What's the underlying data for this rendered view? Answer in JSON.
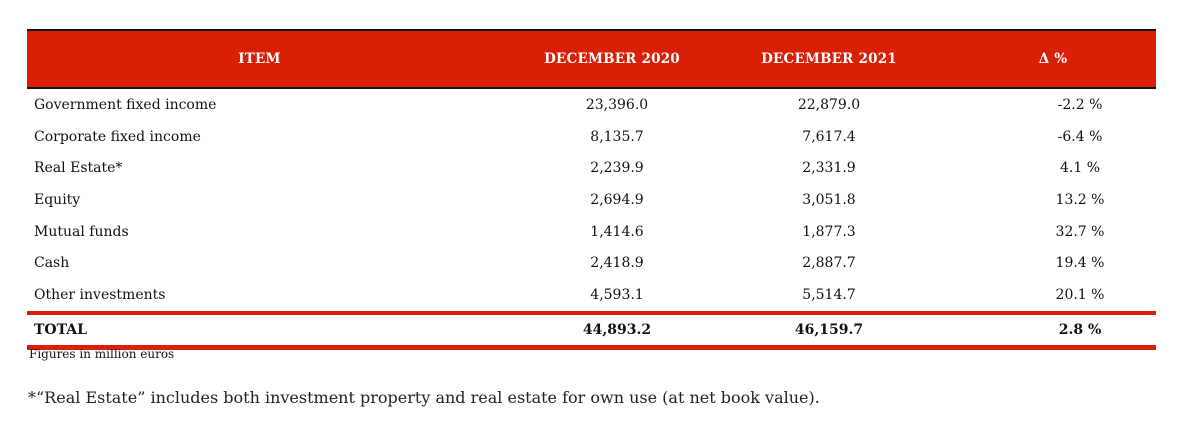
{
  "table": {
    "headers": [
      "ITEM",
      "DECEMBER 2020",
      "DECEMBER 2021",
      "Δ %"
    ],
    "rows": [
      [
        "Government fixed income",
        "23,396.0",
        "22,879.0",
        "-2.2 %"
      ],
      [
        "Corporate fixed income",
        "8,135.7",
        "7,617.4",
        "-6.4 %"
      ],
      [
        "Real Estate*",
        "2,239.9",
        "2,331.9",
        "4.1 %"
      ],
      [
        "Equity",
        "2,694.9",
        "3,051.8",
        "13.2 %"
      ],
      [
        "Mutual funds",
        "1,414.6",
        "1,877.3",
        "32.7 %"
      ],
      [
        "Cash",
        "2,418.9",
        "2,887.7",
        "19.4 %"
      ],
      [
        "Other investments",
        "4,593.1",
        "5,514.7",
        "20.1 %"
      ]
    ],
    "total": [
      "TOTAL",
      "44,893.2",
      "46,159.7",
      "2.8 %"
    ]
  },
  "note": "Figures in million euros",
  "footnote": "*“Real Estate” includes both investment property and real estate for own use (at net book value).",
  "colors": {
    "header_bg": "#d92007",
    "header_text": "#ffffff",
    "rule": "#d92007"
  }
}
